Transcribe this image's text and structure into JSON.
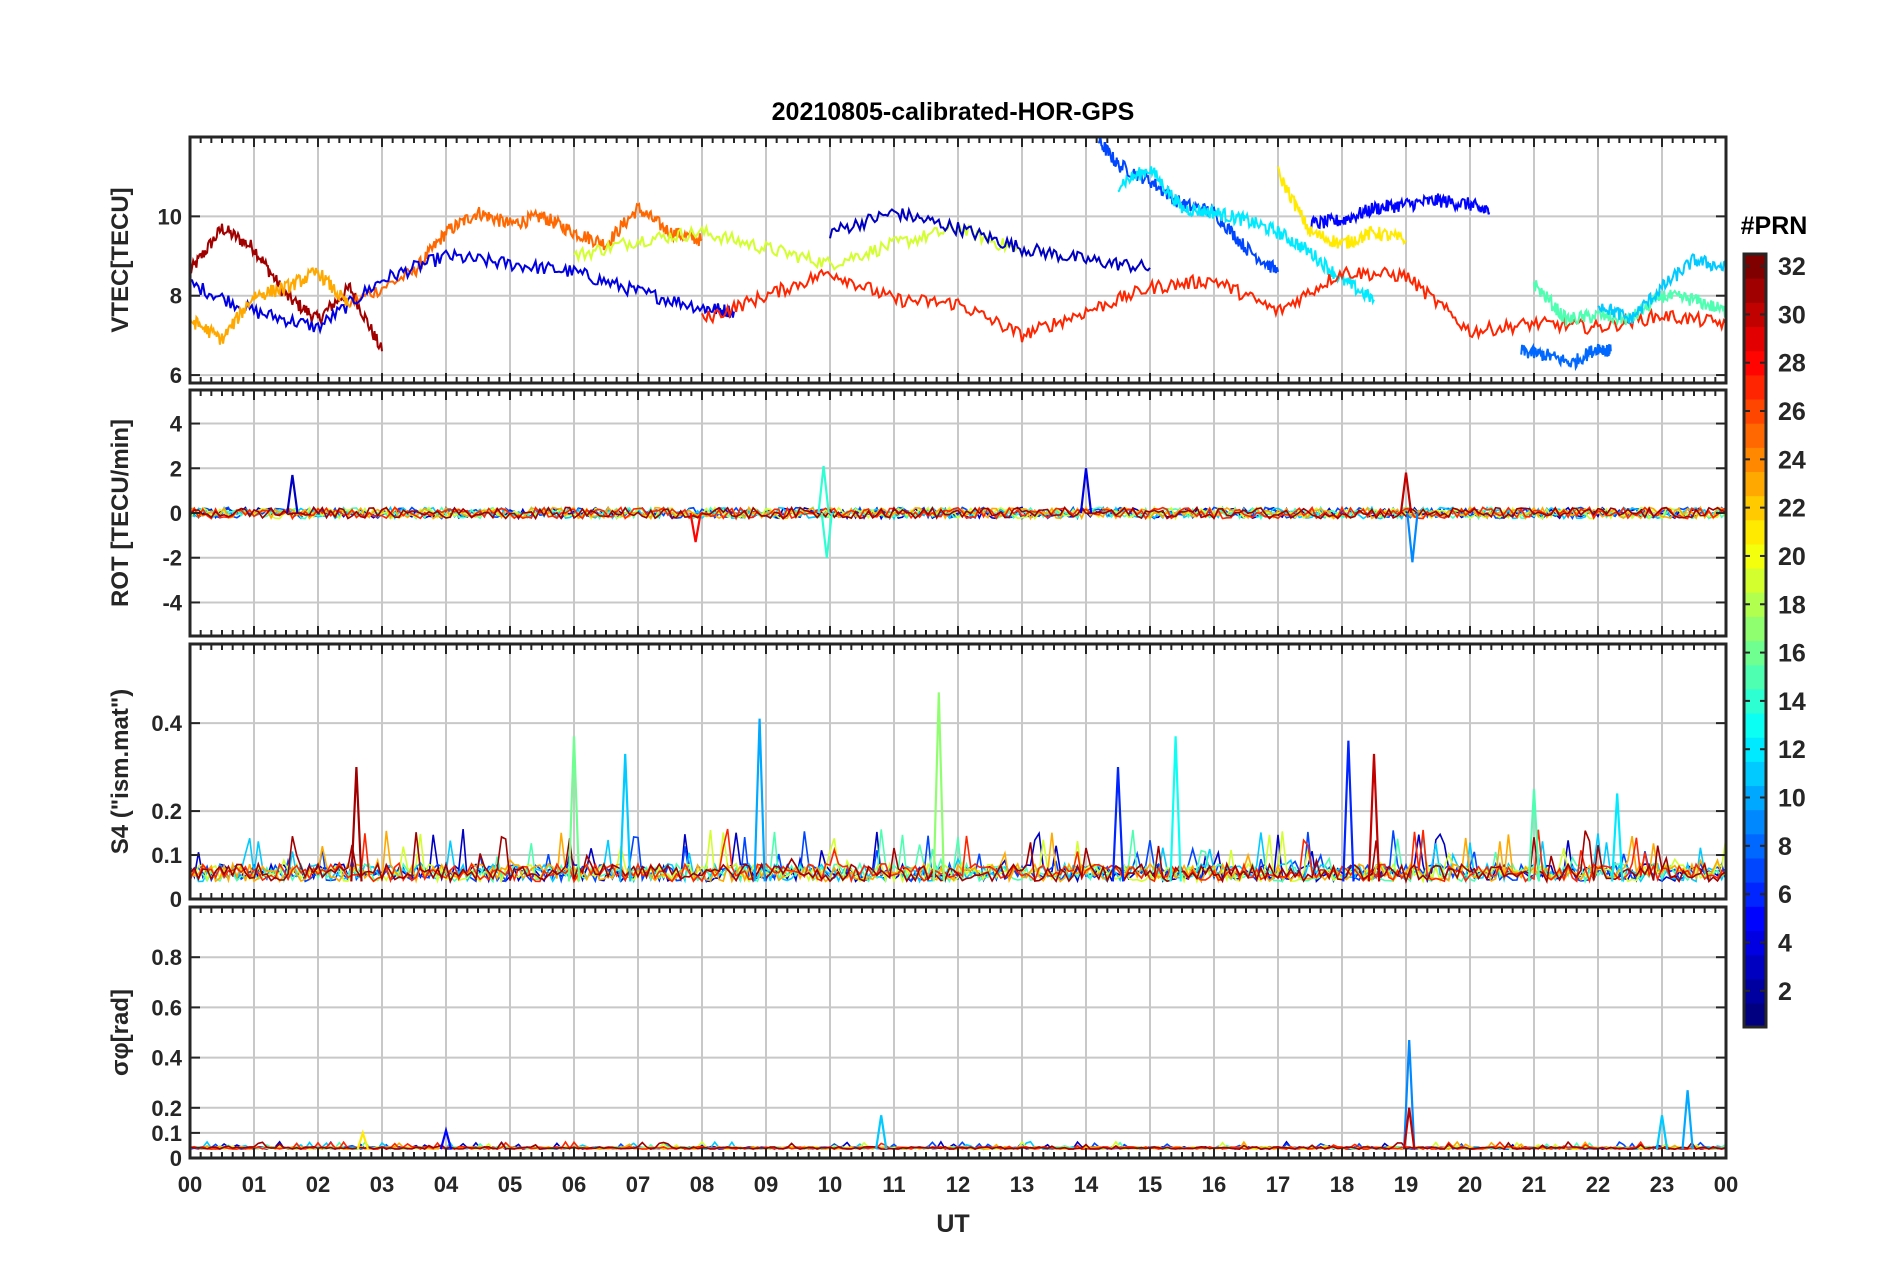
{
  "figure": {
    "title": "20210805-calibrated-HOR-GPS",
    "xlabel": "UT"
  },
  "colors": {
    "axis": "#262626",
    "grid": "#c8c8c8",
    "background": "#ffffff"
  },
  "chart_data": [
    {
      "type": "line",
      "panel": "VTEC",
      "title": "20210805-calibrated-HOR-GPS",
      "ylabel": "VTEC[TECU]",
      "ylim": [
        5.8,
        12
      ],
      "yticks": [
        6,
        8,
        10
      ],
      "xlim": [
        0,
        24
      ],
      "grid": true,
      "series_note_level": "per-satellite lines colored by PRN",
      "approx_series": [
        {
          "prn": 31,
          "x": [
            0,
            0.5,
            1,
            1.5,
            2,
            2.5,
            3
          ],
          "y": [
            8.6,
            9.7,
            9.2,
            8.0,
            7.4,
            8.2,
            6.6
          ]
        },
        {
          "prn": 25,
          "x": [
            2.5,
            3.5,
            4,
            4.5,
            5,
            5.5,
            6,
            6.5,
            7,
            7.5,
            8
          ],
          "y": [
            7.8,
            8.6,
            9.6,
            10.1,
            9.8,
            10.0,
            9.6,
            9.3,
            10.2,
            9.6,
            9.4
          ]
        },
        {
          "prn": 4,
          "x": [
            0,
            1,
            2,
            3,
            4,
            5,
            6,
            7,
            8,
            8.5
          ],
          "y": [
            8.3,
            7.6,
            7.2,
            8.4,
            9.0,
            8.8,
            8.6,
            8.1,
            7.7,
            7.6
          ]
        },
        {
          "prn": 19,
          "x": [
            6,
            7,
            8,
            9,
            10,
            11,
            12,
            13
          ],
          "y": [
            9.0,
            9.4,
            9.6,
            9.2,
            8.8,
            9.3,
            9.7,
            9.1
          ]
        },
        {
          "prn": 3,
          "x": [
            10,
            11,
            12,
            13,
            14,
            15
          ],
          "y": [
            9.6,
            10.1,
            9.7,
            9.2,
            8.9,
            8.7
          ]
        },
        {
          "prn": 7,
          "x": [
            14.2,
            14.5,
            15,
            15.5,
            16,
            16.5,
            17
          ],
          "y": [
            11.9,
            11.3,
            10.9,
            10.3,
            10.1,
            9.2,
            8.6
          ]
        },
        {
          "prn": 5,
          "x": [
            17.5,
            18,
            18.5,
            19,
            19.5,
            20,
            20.3
          ],
          "y": [
            9.8,
            9.9,
            10.2,
            10.3,
            10.4,
            10.3,
            10.1
          ]
        },
        {
          "prn": 12,
          "x": [
            14.5,
            15,
            15.5,
            16,
            16.5,
            17,
            17.5,
            18,
            18.5
          ],
          "y": [
            10.8,
            11.2,
            10.2,
            10.1,
            9.9,
            9.6,
            9.1,
            8.4,
            7.9
          ]
        },
        {
          "prn": 27,
          "x": [
            8,
            9,
            10,
            11,
            12,
            13,
            14,
            15,
            16,
            17,
            18,
            19,
            20,
            21,
            22,
            23,
            24
          ],
          "y": [
            7.4,
            8.0,
            8.6,
            7.9,
            7.8,
            7.0,
            7.6,
            8.2,
            8.4,
            7.6,
            8.6,
            8.5,
            7.1,
            7.3,
            7.2,
            7.5,
            7.3
          ]
        },
        {
          "prn": 21,
          "x": [
            17,
            17.5,
            18,
            18.5,
            19
          ],
          "y": [
            11.1,
            9.6,
            9.3,
            9.6,
            9.4
          ]
        },
        {
          "prn": 15,
          "x": [
            21,
            21.5,
            22,
            22.5,
            23,
            23.5,
            24
          ],
          "y": [
            8.3,
            7.4,
            7.5,
            7.4,
            8.0,
            7.9,
            7.6
          ]
        },
        {
          "prn": 11,
          "x": [
            22,
            22.5,
            23,
            23.5,
            24
          ],
          "y": [
            7.8,
            7.4,
            8.2,
            8.9,
            8.7
          ]
        },
        {
          "prn": 23,
          "x": [
            0,
            0.5,
            1,
            1.5,
            2,
            2.5
          ],
          "y": [
            7.4,
            6.9,
            8.0,
            8.2,
            8.6,
            7.7
          ]
        },
        {
          "prn": 8,
          "x": [
            20.8,
            21.2,
            21.6,
            22,
            22.2
          ],
          "y": [
            6.6,
            6.5,
            6.3,
            6.7,
            6.6
          ]
        }
      ]
    },
    {
      "type": "line",
      "panel": "ROT",
      "ylabel": "ROT [TECU/min]",
      "ylim": [
        -5.5,
        5.5
      ],
      "yticks": [
        -4,
        -2,
        0,
        2,
        4
      ],
      "xlim": [
        0,
        24
      ],
      "grid": true,
      "approx_peaks": [
        {
          "prn": 3,
          "x": 1.6,
          "y": 1.7
        },
        {
          "prn": 14,
          "x": 9.9,
          "y": 2.1
        },
        {
          "prn": 14,
          "x": 9.95,
          "y": -2.0
        },
        {
          "prn": 4,
          "x": 14.0,
          "y": 2.0
        },
        {
          "prn": 30,
          "x": 19.0,
          "y": 1.8
        },
        {
          "prn": 9,
          "x": 19.1,
          "y": -2.2
        },
        {
          "prn": 28,
          "x": 7.9,
          "y": -1.3
        }
      ]
    },
    {
      "type": "line",
      "panel": "S4",
      "ylabel": "S4 (\"ism.mat\")",
      "ylim": [
        0,
        0.58
      ],
      "yticks": [
        0,
        0.1,
        0.2,
        0.4
      ],
      "xlim": [
        0,
        24
      ],
      "grid": true,
      "approx_peaks": [
        {
          "prn": 31,
          "x": 2.6,
          "y": 0.3
        },
        {
          "prn": 16,
          "x": 6.0,
          "y": 0.37
        },
        {
          "prn": 11,
          "x": 6.8,
          "y": 0.33
        },
        {
          "prn": 10,
          "x": 8.9,
          "y": 0.41
        },
        {
          "prn": 17,
          "x": 11.7,
          "y": 0.47
        },
        {
          "prn": 6,
          "x": 14.5,
          "y": 0.3
        },
        {
          "prn": 13,
          "x": 15.4,
          "y": 0.37
        },
        {
          "prn": 6,
          "x": 18.1,
          "y": 0.36
        },
        {
          "prn": 30,
          "x": 18.5,
          "y": 0.33
        },
        {
          "prn": 15,
          "x": 21.0,
          "y": 0.25
        },
        {
          "prn": 12,
          "x": 22.3,
          "y": 0.24
        }
      ]
    },
    {
      "type": "line",
      "panel": "sigma_phi",
      "ylabel": "σφ[rad]",
      "ylim": [
        0,
        1.0
      ],
      "yticks": [
        0,
        0.1,
        0.2,
        0.4,
        0.6,
        0.8
      ],
      "xlim": [
        0,
        24
      ],
      "grid": true,
      "approx_peaks": [
        {
          "prn": 9,
          "x": 19.05,
          "y": 0.47
        },
        {
          "prn": 30,
          "x": 19.05,
          "y": 0.2
        },
        {
          "prn": 10,
          "x": 23.4,
          "y": 0.27
        },
        {
          "prn": 11,
          "x": 23.0,
          "y": 0.17
        },
        {
          "prn": 11,
          "x": 10.8,
          "y": 0.17
        },
        {
          "prn": 5,
          "x": 4.0,
          "y": 0.11
        },
        {
          "prn": 21,
          "x": 2.7,
          "y": 0.1
        }
      ]
    }
  ],
  "xticks": [
    "00",
    "01",
    "02",
    "03",
    "04",
    "05",
    "06",
    "07",
    "08",
    "09",
    "10",
    "11",
    "12",
    "13",
    "14",
    "15",
    "16",
    "17",
    "18",
    "19",
    "20",
    "21",
    "22",
    "23",
    "00"
  ],
  "colorbar": {
    "label": "#PRN",
    "min": 1,
    "max": 32,
    "ticks": [
      2,
      4,
      6,
      8,
      10,
      12,
      14,
      16,
      18,
      20,
      22,
      24,
      26,
      28,
      30,
      32
    ],
    "colormap": "jet"
  }
}
